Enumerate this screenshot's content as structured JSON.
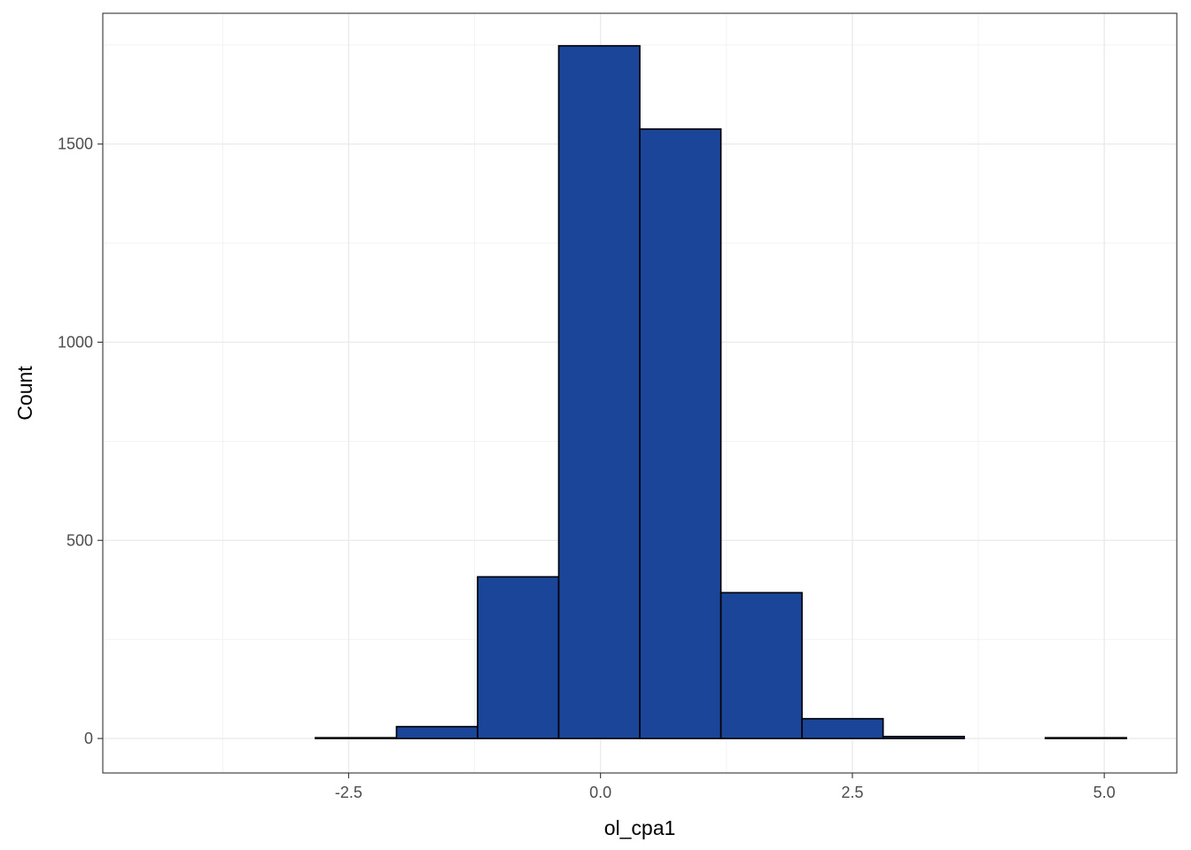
{
  "chart_data": {
    "type": "histogram",
    "title": "",
    "xlabel": "ol_cpa1",
    "ylabel": "Count",
    "bin_edges": [
      -4.44,
      -3.635,
      -2.83,
      -2.025,
      -1.22,
      -0.415,
      0.39,
      1.195,
      2.0,
      2.805,
      3.61,
      4.415,
      5.22
    ],
    "values": [
      0,
      0,
      2,
      30,
      408,
      1748,
      1538,
      368,
      50,
      5,
      0,
      2
    ],
    "xlim": [
      -4.94,
      5.72
    ],
    "ylim": [
      -87,
      1830
    ],
    "x_ticks": [
      -2.5,
      0.0,
      2.5,
      5.0
    ],
    "x_tick_labels": [
      "-2.5",
      "0.0",
      "2.5",
      "5.0"
    ],
    "y_ticks": [
      0,
      500,
      1000,
      1500
    ],
    "y_tick_labels": [
      "0",
      "500",
      "1000",
      "1500"
    ],
    "grid": true,
    "fill_color": "#1a4599",
    "edge_color": "#000000",
    "theme": "bw"
  }
}
